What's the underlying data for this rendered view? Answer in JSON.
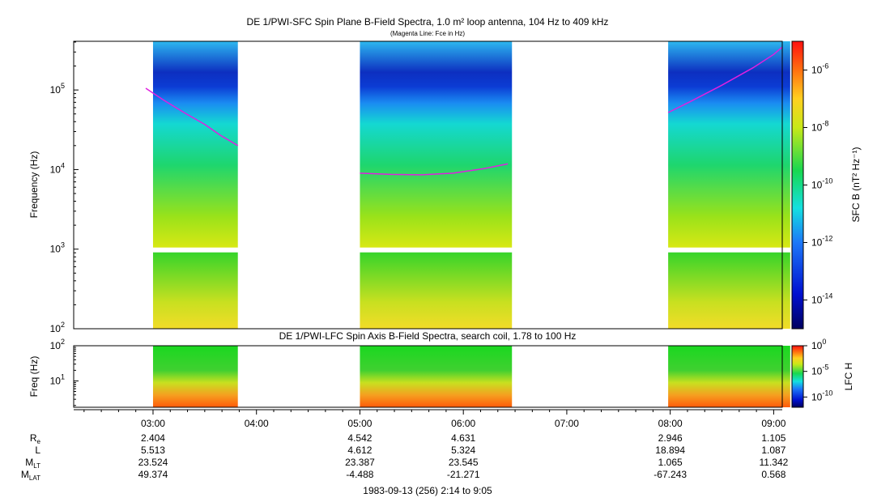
{
  "chart_data": [
    {
      "type": "heatmap",
      "title": "DE 1/PWI-SFC  Spin Plane B-Field Spectra, 1.0 m² loop antenna, 104 Hz to 409 kHz",
      "subtitle": "(Magenta Line: Fce in Hz)",
      "ylabel": "Frequency (Hz)",
      "y_scale": "log",
      "ylim": [
        100,
        409000
      ],
      "y_ticks": [
        {
          "value": 100,
          "base": "10",
          "exp": "2"
        },
        {
          "value": 1000,
          "base": "10",
          "exp": "3"
        },
        {
          "value": 10000,
          "base": "10",
          "exp": "4"
        },
        {
          "value": 100000,
          "base": "10",
          "exp": "5"
        }
      ],
      "colorbar": {
        "label": "SFC B (nT² Hz⁻¹)",
        "range_exp": [
          -15,
          -5
        ],
        "ticks": [
          {
            "exp": -6,
            "label": "-6"
          },
          {
            "exp": -8,
            "label": "-8"
          },
          {
            "exp": -10,
            "label": "-10"
          },
          {
            "exp": -12,
            "label": "-12"
          },
          {
            "exp": -14,
            "label": "-14"
          }
        ]
      },
      "data_intervals_hours": [
        [
          3.0,
          3.82
        ],
        [
          5.0,
          6.47
        ],
        [
          7.98,
          9.16
        ]
      ],
      "fce_line_hz": [
        {
          "t": [
            2.93,
            3.1,
            3.3,
            3.5,
            3.65,
            3.82
          ],
          "hz": [
            105000,
            75000,
            52000,
            37000,
            27000,
            20000
          ]
        },
        {
          "t": [
            5.0,
            5.3,
            5.6,
            5.9,
            6.2,
            6.43
          ],
          "hz": [
            9000,
            8700,
            8600,
            9000,
            10300,
            11800
          ]
        },
        {
          "t": [
            7.98,
            8.2,
            8.5,
            8.8,
            9.0,
            9.15
          ],
          "hz": [
            52000,
            72000,
            115000,
            190000,
            280000,
            410000
          ]
        }
      ]
    },
    {
      "type": "heatmap",
      "title": "DE 1/PWI-LFC  Spin Axis B-Field Spectra, search coil, 1.78 to 100 Hz",
      "ylabel": "Freq (Hz)",
      "y_scale": "log",
      "ylim": [
        1.78,
        100
      ],
      "y_ticks": [
        {
          "value": 10,
          "base": "10",
          "exp": "1"
        },
        {
          "value": 100,
          "base": "10",
          "exp": "2"
        }
      ],
      "colorbar": {
        "label": "LFC H",
        "range_exp": [
          -12,
          0
        ],
        "ticks": [
          {
            "exp": 0,
            "label": "0"
          },
          {
            "exp": -5,
            "label": "-5"
          },
          {
            "exp": -10,
            "label": "-10"
          }
        ]
      },
      "data_intervals_hours": [
        [
          3.0,
          3.82
        ],
        [
          5.0,
          6.47
        ],
        [
          7.98,
          9.16
        ]
      ]
    }
  ],
  "time_axis": {
    "range_hours": [
      2.233,
      9.083
    ],
    "major_ticks": [
      {
        "t": 3,
        "label": "03:00"
      },
      {
        "t": 4,
        "label": "04:00"
      },
      {
        "t": 5,
        "label": "05:00"
      },
      {
        "t": 6,
        "label": "06:00"
      },
      {
        "t": 7,
        "label": "07:00"
      },
      {
        "t": 8,
        "label": "08:00"
      },
      {
        "t": 9,
        "label": "09:00"
      }
    ],
    "caption": "1983-09-13 (256) 2:14 to 9:05"
  },
  "ephemeris": {
    "rows": [
      {
        "label": "R",
        "sub": "e",
        "values": [
          {
            "t": 3,
            "v": "2.404"
          },
          {
            "t": 5,
            "v": "4.542"
          },
          {
            "t": 6,
            "v": "4.631"
          },
          {
            "t": 8,
            "v": "2.946"
          },
          {
            "t": 9,
            "v": "1.105"
          }
        ]
      },
      {
        "label": "L",
        "sub": "",
        "values": [
          {
            "t": 3,
            "v": "5.513"
          },
          {
            "t": 5,
            "v": "4.612"
          },
          {
            "t": 6,
            "v": "5.324"
          },
          {
            "t": 8,
            "v": "18.894"
          },
          {
            "t": 9,
            "v": "1.087"
          }
        ]
      },
      {
        "label": "M",
        "sub": "LT",
        "values": [
          {
            "t": 3,
            "v": "23.524"
          },
          {
            "t": 5,
            "v": "23.387"
          },
          {
            "t": 6,
            "v": "23.545"
          },
          {
            "t": 8,
            "v": "1.065"
          },
          {
            "t": 9,
            "v": "11.342"
          }
        ]
      },
      {
        "label": "M",
        "sub": "LAT",
        "values": [
          {
            "t": 3,
            "v": "49.374"
          },
          {
            "t": 5,
            "v": "-4.488"
          },
          {
            "t": 6,
            "v": "-21.271"
          },
          {
            "t": 8,
            "v": "-67.243"
          },
          {
            "t": 9,
            "v": "0.568"
          }
        ]
      }
    ]
  }
}
